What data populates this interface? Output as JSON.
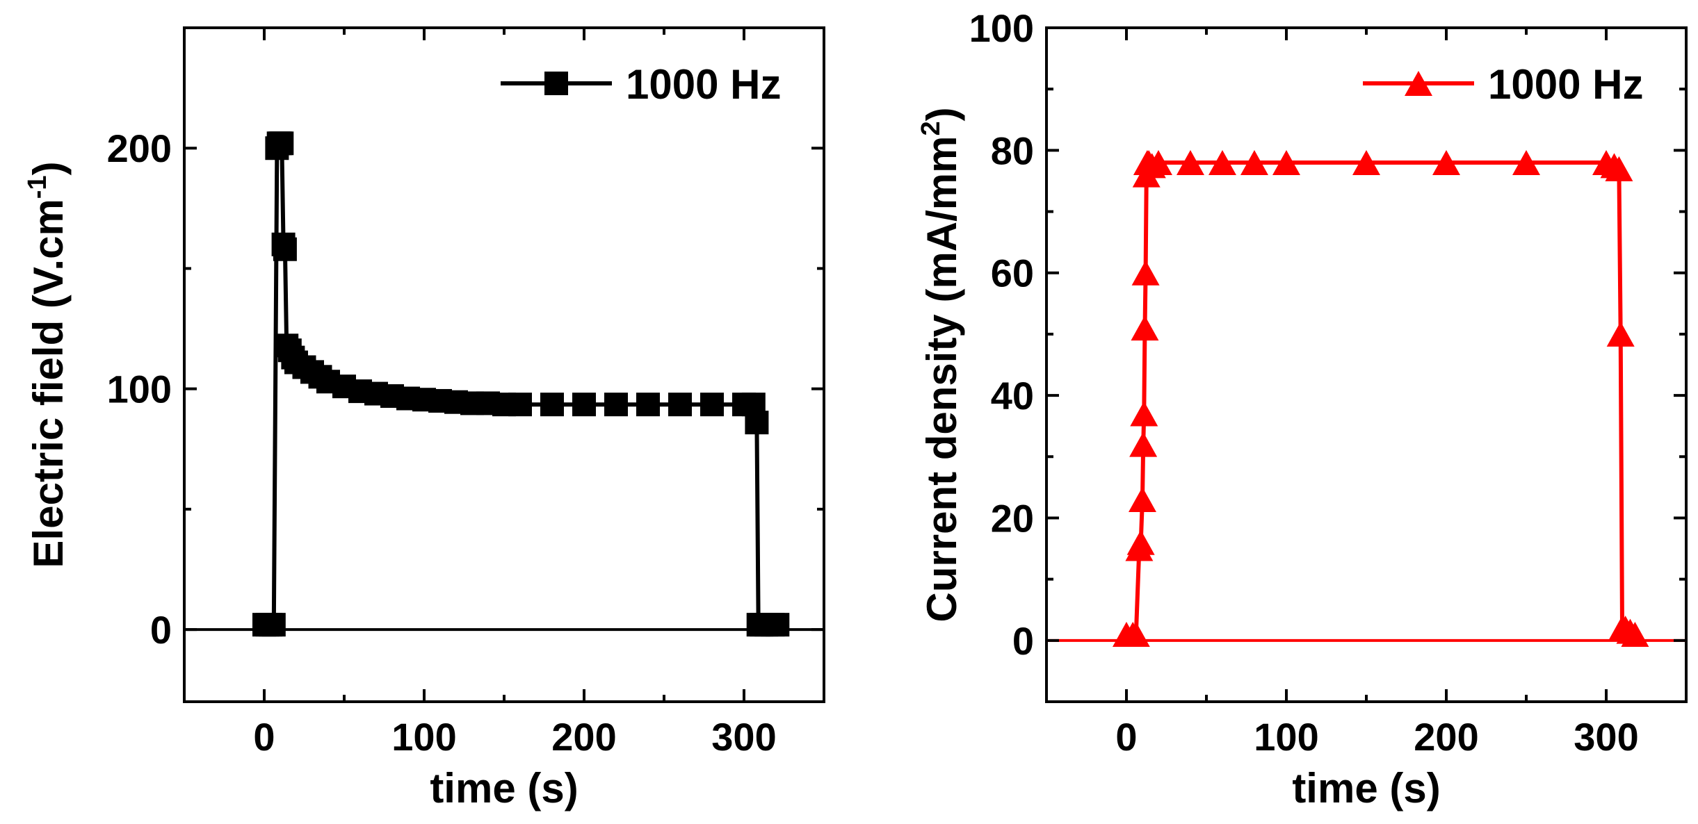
{
  "chart_data": [
    {
      "type": "line",
      "xlabel": "time (s)",
      "ylabel": "Electric field (V.cm",
      "ylabel_sup": "-1",
      "ylabel_close": ")",
      "xlim": [
        -50,
        350
      ],
      "ylim": [
        -30,
        250
      ],
      "xticks": [
        0,
        100,
        200,
        300
      ],
      "yticks": [
        0,
        100,
        200
      ],
      "yticks_minor": [
        50,
        150
      ],
      "xtick_labels": [
        "0",
        "100",
        "200",
        "300"
      ],
      "ytick_labels": [
        "0",
        "100",
        "200"
      ],
      "hline": 0,
      "grid": false,
      "legend_position": "top-right",
      "series": [
        {
          "name": "1000 Hz",
          "marker": "square",
          "color": "#000000",
          "x": [
            0,
            2,
            4,
            6,
            8,
            9,
            10,
            11,
            12,
            13,
            14,
            16,
            18,
            20,
            25,
            30,
            35,
            40,
            50,
            60,
            70,
            80,
            90,
            100,
            110,
            120,
            130,
            140,
            150,
            160,
            180,
            200,
            220,
            240,
            260,
            280,
            300,
            306,
            308,
            309,
            311,
            314,
            318,
            321
          ],
          "y": [
            2,
            2,
            2,
            2,
            200,
            202,
            202,
            202,
            160,
            158,
            118,
            116,
            113,
            111,
            109,
            107,
            105,
            103,
            101,
            99,
            98,
            97,
            96,
            95.5,
            95,
            94.5,
            94,
            94,
            93.5,
            93.5,
            93.5,
            93.5,
            93.5,
            93.5,
            93.5,
            93.5,
            93.5,
            93.5,
            86,
            2,
            2,
            2,
            2,
            2
          ]
        }
      ]
    },
    {
      "type": "line",
      "xlabel": "time (s)",
      "ylabel": "Current density (mA/mm",
      "ylabel_sup": "2",
      "ylabel_close": ")",
      "xlim": [
        -50,
        350
      ],
      "ylim": [
        -10,
        100
      ],
      "xticks": [
        0,
        100,
        200,
        300
      ],
      "yticks": [
        0,
        20,
        40,
        60,
        80,
        100
      ],
      "xtick_labels": [
        "0",
        "100",
        "200",
        "300"
      ],
      "ytick_labels": [
        "0",
        "20",
        "40",
        "60",
        "80",
        "100"
      ],
      "hline": 0,
      "grid": false,
      "legend_position": "top-right",
      "series": [
        {
          "name": "1000 Hz",
          "marker": "triangle",
          "color": "#ff0000",
          "x": [
            0,
            4,
            6,
            8,
            9,
            10,
            10.5,
            11,
            11.5,
            12,
            12.5,
            13,
            14,
            16,
            20,
            40,
            60,
            80,
            100,
            150,
            200,
            250,
            300,
            305,
            308,
            309,
            310,
            312,
            315,
            318
          ],
          "y": [
            1,
            1,
            1,
            15,
            16,
            23,
            32,
            37,
            51,
            60,
            76,
            78,
            78,
            77.5,
            78,
            78,
            78,
            78,
            78,
            78,
            78,
            78,
            78,
            77.5,
            77,
            50,
            2,
            2,
            1.5,
            1
          ]
        }
      ]
    }
  ]
}
